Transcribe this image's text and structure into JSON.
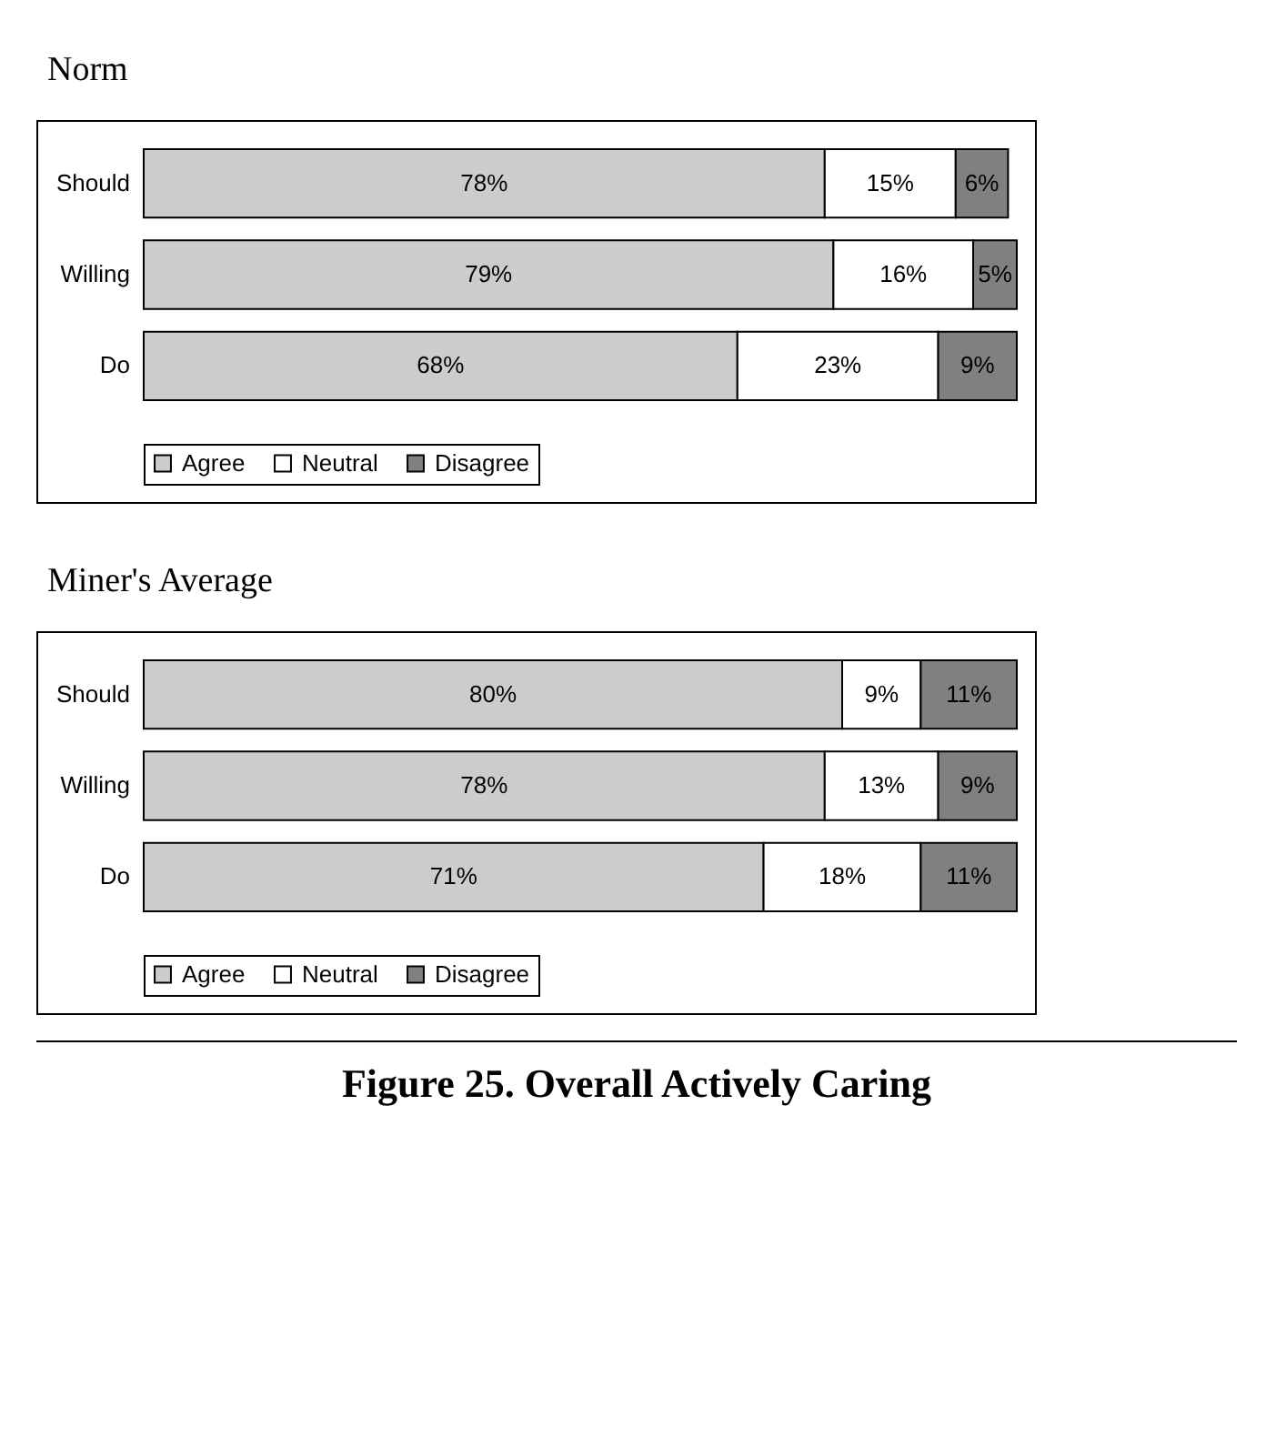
{
  "chart_data": [
    {
      "type": "bar",
      "title": "Norm",
      "orientation": "horizontal",
      "stacked": true,
      "legend": "bottom",
      "categories": [
        "Should",
        "Willing",
        "Do"
      ],
      "series": [
        {
          "name": "Agree",
          "color": "#cccccc",
          "values": [
            78,
            79,
            68
          ],
          "value_labels": [
            "78%",
            "79%",
            "68%"
          ]
        },
        {
          "name": "Neutral",
          "color": "#ffffff",
          "values": [
            15,
            16,
            23
          ],
          "value_labels": [
            "15%",
            "16%",
            "23%"
          ]
        },
        {
          "name": "Disagree",
          "color": "#808080",
          "values": [
            6,
            5,
            9
          ],
          "value_labels": [
            "6%",
            "5%",
            "9%"
          ]
        }
      ]
    },
    {
      "type": "bar",
      "title": "Miner's Average",
      "orientation": "horizontal",
      "stacked": true,
      "legend": "bottom",
      "categories": [
        "Should",
        "Willing",
        "Do"
      ],
      "annotations": [
        "Figure 25. Overall Actively Caring"
      ],
      "series": [
        {
          "name": "Agree",
          "color": "#cccccc",
          "values": [
            80,
            78,
            71
          ],
          "value_labels": [
            "80%",
            "78%",
            "71%"
          ]
        },
        {
          "name": "Neutral",
          "color": "#ffffff",
          "values": [
            9,
            13,
            18
          ],
          "value_labels": [
            "9%",
            "13%",
            "18%"
          ]
        },
        {
          "name": "Disagree",
          "color": "#808080",
          "values": [
            11,
            9,
            11
          ],
          "value_labels": [
            "11%",
            "9%",
            "11%"
          ]
        }
      ]
    }
  ]
}
